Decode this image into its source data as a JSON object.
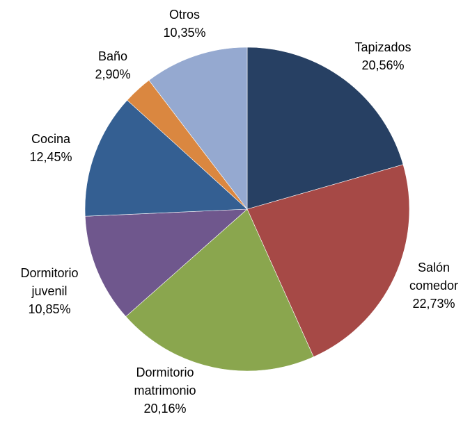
{
  "chart_data": {
    "type": "pie",
    "title": "",
    "legend": "none",
    "start_angle_deg": 0,
    "direction": "clockwise",
    "slices": [
      {
        "label_lines": [
          "Tapizados"
        ],
        "value": 20.56,
        "value_label": "20,56%",
        "color": "#274063"
      },
      {
        "label_lines": [
          "Salón",
          "comedor"
        ],
        "value": 22.73,
        "value_label": "22,73%",
        "color": "#A64946"
      },
      {
        "label_lines": [
          "Dormitorio",
          "matrimonio"
        ],
        "value": 20.16,
        "value_label": "20,16%",
        "color": "#8AA64E"
      },
      {
        "label_lines": [
          "Dormitorio",
          "juvenil"
        ],
        "value": 10.85,
        "value_label": "10,85%",
        "color": "#6F578D"
      },
      {
        "label_lines": [
          "Cocina"
        ],
        "value": 12.45,
        "value_label": "12,45%",
        "color": "#345F92"
      },
      {
        "label_lines": [
          "Baño"
        ],
        "value": 2.9,
        "value_label": "2,90%",
        "color": "#DA8740"
      },
      {
        "label_lines": [
          "Otros"
        ],
        "value": 10.35,
        "value_label": "10,35%",
        "color": "#95A9D0"
      }
    ]
  }
}
